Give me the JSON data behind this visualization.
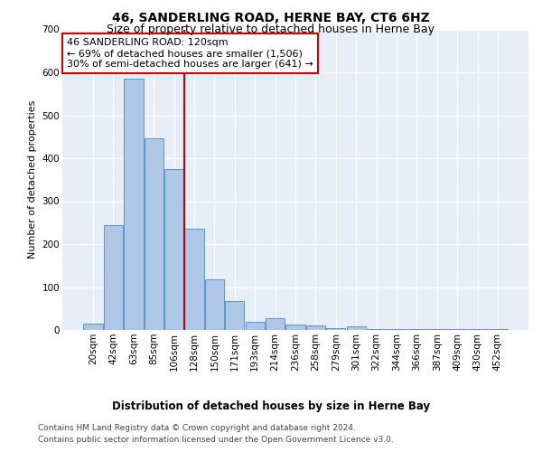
{
  "title": "46, SANDERLING ROAD, HERNE BAY, CT6 6HZ",
  "subtitle": "Size of property relative to detached houses in Herne Bay",
  "xlabel": "Distribution of detached houses by size in Herne Bay",
  "ylabel": "Number of detached properties",
  "categories": [
    "20sqm",
    "42sqm",
    "63sqm",
    "85sqm",
    "106sqm",
    "128sqm",
    "150sqm",
    "171sqm",
    "193sqm",
    "214sqm",
    "236sqm",
    "258sqm",
    "279sqm",
    "301sqm",
    "322sqm",
    "344sqm",
    "366sqm",
    "387sqm",
    "409sqm",
    "430sqm",
    "452sqm"
  ],
  "values": [
    15,
    245,
    585,
    447,
    375,
    235,
    118,
    68,
    18,
    28,
    12,
    10,
    5,
    8,
    2,
    2,
    2,
    2,
    2,
    2,
    2
  ],
  "bar_color": "#aec6e8",
  "bar_edge_color": "#5a96c8",
  "red_line_color": "#cc0000",
  "red_line_x": 4.5,
  "annotation_text": "46 SANDERLING ROAD: 120sqm\n← 69% of detached houses are smaller (1,506)\n30% of semi-detached houses are larger (641) →",
  "annotation_box_color": "#ffffff",
  "annotation_box_edge": "#cc0000",
  "ylim": [
    0,
    700
  ],
  "yticks": [
    0,
    100,
    200,
    300,
    400,
    500,
    600,
    700
  ],
  "background_color": "#e8eef7",
  "footer_line1": "Contains HM Land Registry data © Crown copyright and database right 2024.",
  "footer_line2": "Contains public sector information licensed under the Open Government Licence v3.0.",
  "title_fontsize": 10,
  "subtitle_fontsize": 9,
  "xlabel_fontsize": 8.5,
  "ylabel_fontsize": 8,
  "tick_fontsize": 7.5,
  "annotation_fontsize": 8,
  "footer_fontsize": 6.5
}
